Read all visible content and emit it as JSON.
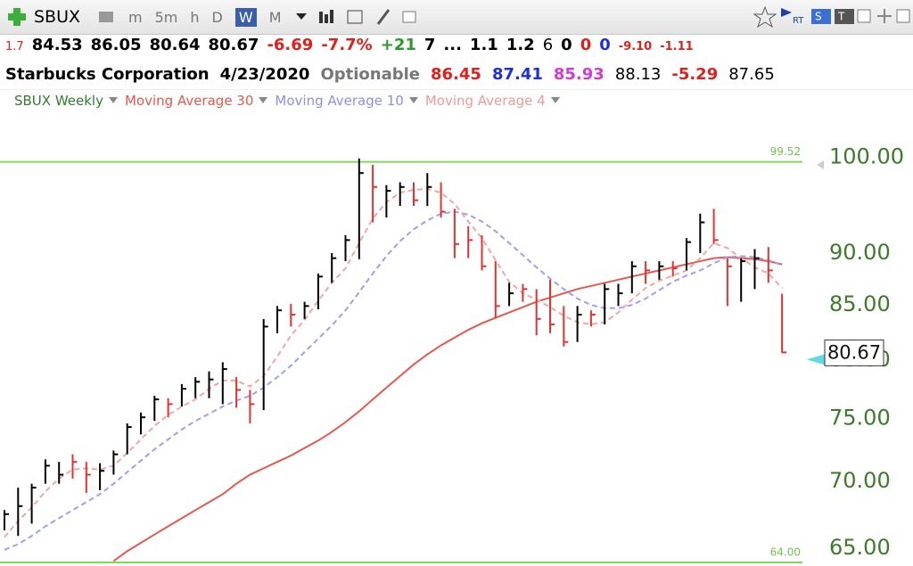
{
  "toolbar": {
    "symbol": "SBUX",
    "intervals": [
      "m",
      "5m",
      "h",
      "D",
      "W",
      "M"
    ]
  },
  "quote_line": [
    "1.7",
    "84.53",
    "86.05",
    "80.64",
    "80.67",
    "-6.69",
    "-7.7%",
    "+21",
    "7",
    "...",
    "1.1",
    "1.2",
    "6",
    "0",
    "0",
    "0",
    "-9.10",
    "-1.11"
  ],
  "info_line": [
    "Starbucks Corporation",
    "4/23/2020",
    "Optionable",
    "86.45",
    "87.41",
    "85.93",
    "88.13",
    "-5.29",
    "87.65"
  ],
  "chart_data": {
    "type": "ohlc",
    "log_scale": true,
    "ylim": [
      63.75,
      104.9
    ],
    "yticks": [
      {
        "value": 100,
        "label": "100.00"
      },
      {
        "value": 90,
        "label": "90.00"
      },
      {
        "value": 85,
        "label": "85.00"
      },
      {
        "value": 80,
        "label": "80.00"
      },
      {
        "value": 75,
        "label": "75.00"
      },
      {
        "value": 70,
        "label": "70.00"
      },
      {
        "value": 65,
        "label": "65.00"
      }
    ],
    "hlines": [
      99.52,
      {
        "value": 64,
        "label": "64.00"
      }
    ],
    "hline_color": "#7ddb5c",
    "last_price": 80.67,
    "price": {
      "name": "SBUX Weekly",
      "high": [
        67.8,
        69.5,
        69.8,
        71.7,
        71.5,
        72.1,
        71.5,
        71.4,
        72.4,
        74.6,
        75.5,
        76.9,
        76.7,
        77.9,
        78.5,
        79.0,
        79.8,
        78.5,
        77.4,
        83.7,
        84.9,
        85.1,
        85.3,
        88.0,
        90.0,
        91.8,
        99.9,
        99.2,
        97.0,
        97.3,
        97.3,
        98.3,
        97.3,
        94.5,
        92.7,
        91.8,
        89.2,
        87.1,
        87.0,
        86.5,
        87.4,
        84.9,
        84.9,
        84.5,
        87.0,
        87.0,
        89.2,
        89.2,
        89.2,
        89.2,
        91.5,
        94.0,
        94.5,
        89.5,
        89.5,
        90.4,
        90.6,
        86.05
      ],
      "low": [
        66.3,
        65.9,
        66.8,
        69.8,
        69.8,
        70.2,
        69.1,
        69.3,
        70.5,
        72.1,
        73.7,
        74.8,
        75.1,
        76.0,
        76.7,
        76.7,
        76.2,
        75.9,
        74.6,
        75.7,
        82.4,
        83.0,
        83.7,
        84.6,
        87.1,
        89.2,
        89.4,
        93.1,
        93.6,
        94.8,
        94.8,
        94.8,
        93.6,
        89.5,
        89.5,
        88.3,
        83.8,
        84.9,
        85.3,
        82.2,
        82.4,
        81.2,
        81.6,
        83.0,
        83.2,
        84.9,
        86.1,
        87.0,
        87.4,
        87.7,
        88.3,
        90.0,
        90.9,
        84.9,
        85.3,
        86.5,
        87.1,
        80.64
      ],
      "close": [
        67.5,
        68.1,
        69.5,
        71.2,
        70.5,
        71.5,
        70.5,
        70.8,
        72.1,
        74.3,
        75.1,
        76.6,
        76.2,
        77.5,
        78.1,
        78.3,
        79.2,
        77.4,
        76.2,
        83.0,
        84.5,
        84.1,
        84.9,
        87.7,
        89.5,
        91.3,
        98.3,
        96.8,
        96.4,
        96.8,
        95.4,
        96.8,
        94.2,
        90.9,
        91.3,
        88.7,
        84.9,
        86.1,
        86.5,
        83.7,
        83.2,
        81.6,
        84.1,
        84.1,
        86.5,
        86.1,
        88.7,
        88.3,
        88.7,
        88.5,
        91.1,
        93.1,
        91.3,
        88.7,
        89.2,
        89.5,
        88.3,
        80.67
      ],
      "colors": [
        "#000000",
        "#000000",
        "#000000",
        "#000000",
        "#000000",
        "#e8312f",
        "#e8312f",
        "#000000",
        "#000000",
        "#000000",
        "#000000",
        "#000000",
        "#e8312f",
        "#000000",
        "#000000",
        "#000000",
        "#000000",
        "#e8312f",
        "#e8312f",
        "#000000",
        "#000000",
        "#e8312f",
        "#000000",
        "#000000",
        "#000000",
        "#000000",
        "#000000",
        "#e8312f",
        "#000000",
        "#000000",
        "#e8312f",
        "#000000",
        "#e8312f",
        "#e8312f",
        "#e8312f",
        "#e8312f",
        "#e8312f",
        "#000000",
        "#e8312f",
        "#e8312f",
        "#e8312f",
        "#e8312f",
        "#000000",
        "#e8312f",
        "#000000",
        "#000000",
        "#000000",
        "#e8312f",
        "#000000",
        "#e8312f",
        "#000000",
        "#000000",
        "#e8312f",
        "#e8312f",
        "#000000",
        "#000000",
        "#e8312f",
        "#e8312f"
      ]
    },
    "series": [
      {
        "name": "Moving Average 30",
        "color": "#e8574f",
        "dash": false,
        "values": [
          null,
          null,
          null,
          null,
          null,
          null,
          null,
          null,
          64.1,
          64.8,
          65.4,
          66.0,
          66.6,
          67.2,
          67.8,
          68.4,
          69.0,
          69.8,
          70.5,
          71.0,
          71.5,
          72.0,
          72.6,
          73.2,
          73.9,
          74.7,
          75.6,
          76.6,
          77.6,
          78.6,
          79.6,
          80.5,
          81.3,
          82.0,
          82.7,
          83.3,
          83.8,
          84.3,
          84.8,
          85.3,
          85.7,
          86.1,
          86.5,
          86.8,
          87.1,
          87.4,
          87.7,
          88.0,
          88.3,
          88.6,
          88.9,
          89.2,
          89.5,
          89.6,
          89.5,
          89.4,
          89.2,
          88.9
        ]
      },
      {
        "name": "Moving Average 10",
        "color": "#9f9ff0",
        "dash": true,
        "values": [
          64.9,
          65.3,
          65.9,
          66.6,
          67.2,
          67.8,
          68.4,
          69.0,
          69.8,
          70.7,
          71.6,
          72.5,
          73.3,
          74.1,
          74.8,
          75.4,
          76.0,
          76.5,
          76.9,
          77.6,
          78.5,
          79.5,
          80.7,
          81.9,
          83.1,
          84.5,
          86.2,
          88.0,
          89.7,
          91.2,
          92.4,
          93.3,
          94.0,
          94.2,
          93.9,
          93.2,
          92.2,
          91.0,
          89.8,
          88.6,
          87.5,
          86.5,
          85.6,
          85.0,
          84.7,
          84.7,
          85.0,
          85.6,
          86.4,
          87.2,
          87.8,
          88.3,
          89.0,
          89.6,
          89.7,
          89.6,
          89.3,
          88.8
        ]
      },
      {
        "name": "Moving Average 4",
        "color": "#f4a6a2",
        "dash": true,
        "values": [
          65.8,
          67.0,
          68.0,
          69.2,
          70.2,
          70.9,
          71.0,
          70.9,
          71.2,
          72.2,
          73.3,
          74.4,
          75.3,
          76.0,
          76.6,
          77.5,
          78.2,
          78.2,
          77.7,
          78.6,
          80.3,
          82.2,
          83.6,
          85.4,
          87.1,
          88.5,
          91.0,
          93.5,
          95.2,
          96.2,
          96.5,
          96.6,
          96.2,
          95.0,
          93.2,
          91.5,
          89.3,
          87.2,
          86.1,
          85.5,
          84.8,
          84.0,
          83.4,
          83.2,
          83.4,
          84.3,
          85.5,
          86.6,
          87.3,
          87.8,
          88.3,
          89.5,
          91.0,
          90.5,
          89.5,
          88.6,
          88.0,
          86.6
        ]
      }
    ],
    "legend_colors": [
      "#2f7d2f",
      "#e8574f",
      "#8f8fe6",
      "#f09a96"
    ]
  }
}
